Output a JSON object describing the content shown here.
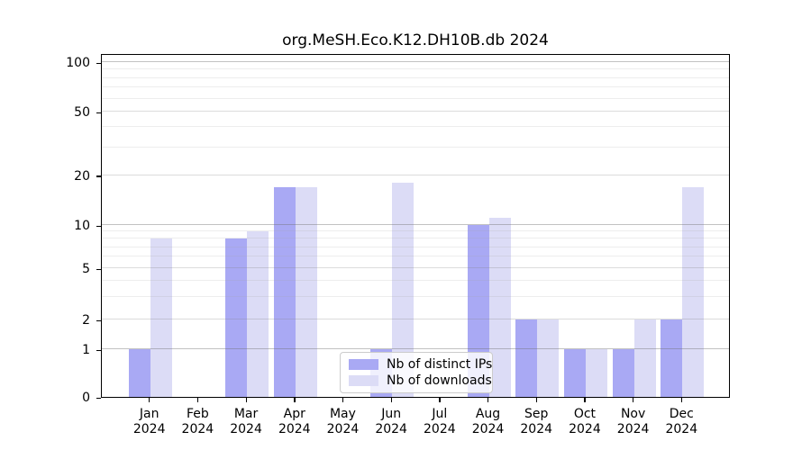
{
  "title": "org.MeSH.Eco.K12.DH10B.db 2024",
  "colors": {
    "distinct_ips": "#a9a9f4",
    "downloads": "#dcdcf6",
    "spine": "#000000",
    "grid_major": "rgba(110,110,110,0.42)",
    "grid_mid": "rgba(130,130,130,0.28)",
    "grid_minor": "rgba(165,165,165,0.20)"
  },
  "legend": {
    "items": [
      {
        "label": "Nb of distinct IPs",
        "series": "distinct_ips"
      },
      {
        "label": "Nb of downloads",
        "series": "downloads"
      }
    ]
  },
  "y_axis": {
    "tick_labels": [
      "100",
      "50",
      "20",
      "10",
      "5",
      "2",
      "1",
      "0"
    ],
    "tick_values": [
      100,
      50,
      20,
      10,
      5,
      2,
      1,
      0
    ]
  },
  "x_axis": {
    "month_labels": [
      "Jan",
      "Feb",
      "Mar",
      "Apr",
      "May",
      "Jun",
      "Jul",
      "Aug",
      "Sep",
      "Oct",
      "Nov",
      "Dec"
    ],
    "year_label": "2024"
  },
  "chart_data": {
    "type": "bar",
    "title": "org.MeSH.Eco.K12.DH10B.db 2024",
    "categories": [
      "Jan 2024",
      "Feb 2024",
      "Mar 2024",
      "Apr 2024",
      "May 2024",
      "Jun 2024",
      "Jul 2024",
      "Aug 2024",
      "Sep 2024",
      "Oct 2024",
      "Nov 2024",
      "Dec 2024"
    ],
    "series": [
      {
        "name": "Nb of distinct IPs",
        "color_key": "distinct_ips",
        "values": [
          1,
          0,
          8,
          17,
          0,
          1,
          0,
          10,
          2,
          1,
          1,
          2
        ]
      },
      {
        "name": "Nb of downloads",
        "color_key": "downloads",
        "values": [
          8,
          0,
          9,
          17,
          0,
          18,
          0,
          11,
          2,
          1,
          2,
          17
        ]
      }
    ],
    "ylim": [
      0,
      100
    ],
    "yticks": [
      0,
      1,
      2,
      5,
      10,
      20,
      50,
      100
    ],
    "scale": "log-like",
    "grid": true,
    "legend_position": "lower center",
    "scale_anchors": {
      "values": [
        0,
        1,
        2,
        5,
        10,
        20,
        50,
        100
      ],
      "fracs": [
        0,
        0.1387,
        0.2251,
        0.3743,
        0.5,
        0.644,
        0.8298,
        0.9738
      ]
    },
    "major_gridlines": [
      1,
      10,
      100
    ],
    "mid_gridlines": [
      2,
      5,
      20,
      50
    ],
    "minor_gridlines": [
      3,
      4,
      6,
      7,
      8,
      9,
      30,
      40,
      60,
      70,
      80,
      90
    ]
  }
}
